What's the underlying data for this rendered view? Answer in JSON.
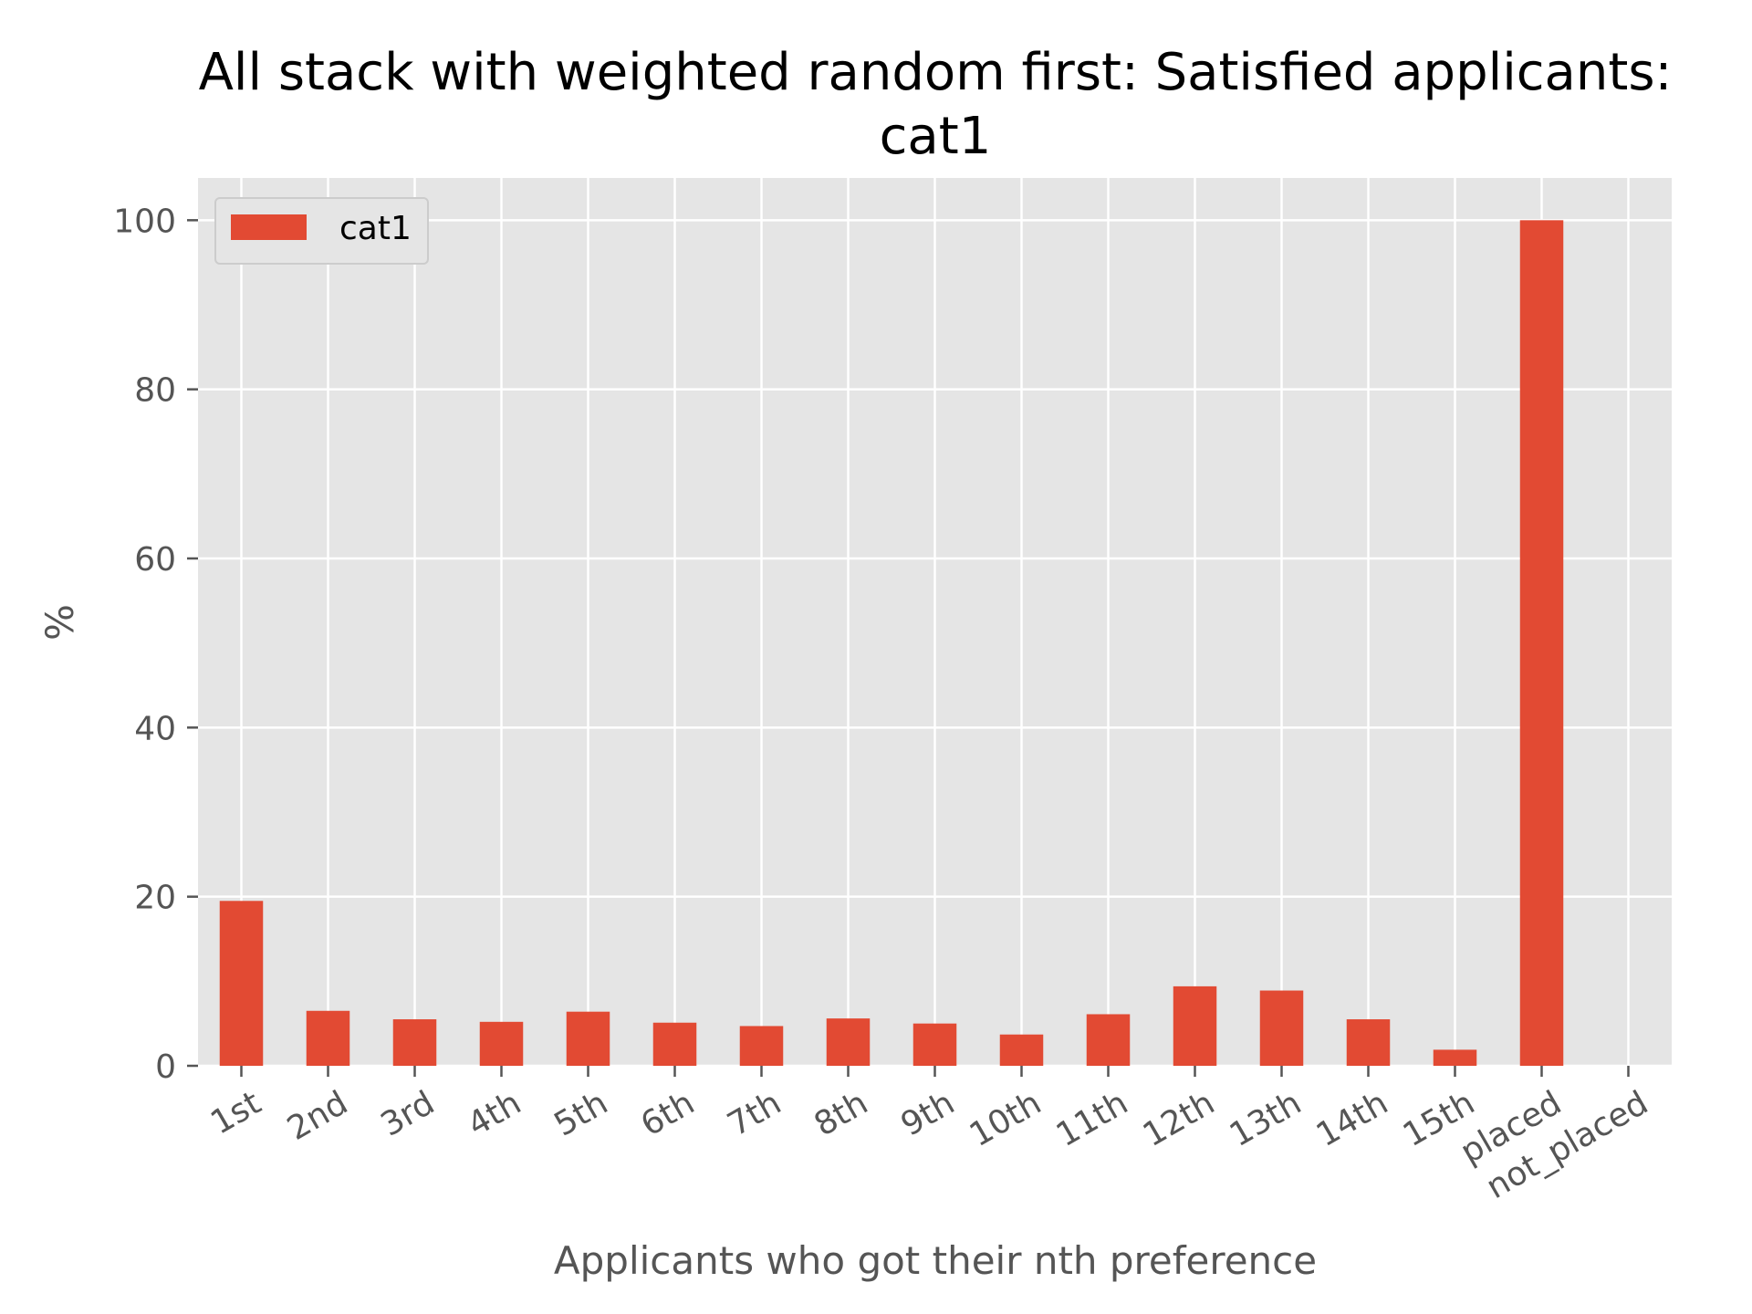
{
  "chart_data": {
    "type": "bar",
    "title_line1": "All stack with weighted random first: Satisfied applicants:",
    "title_line2": "cat1",
    "xlabel": "Applicants who got their nth preference",
    "ylabel": "%",
    "categories": [
      "1st",
      "2nd",
      "3rd",
      "4th",
      "5th",
      "6th",
      "7th",
      "8th",
      "9th",
      "10th",
      "11th",
      "12th",
      "13th",
      "14th",
      "15th",
      "placed",
      "not_placed"
    ],
    "series": [
      {
        "name": "cat1",
        "values": [
          19.5,
          6.5,
          5.5,
          5.2,
          6.4,
          5.1,
          4.7,
          5.6,
          5.0,
          3.7,
          6.1,
          9.4,
          8.9,
          5.5,
          1.9,
          100.0,
          0.0
        ]
      }
    ],
    "ylim": [
      0,
      105
    ],
    "yticks": [
      0,
      20,
      40,
      60,
      80,
      100
    ],
    "grid": true,
    "legend_position": "top-left",
    "colors": {
      "bar": "#E24A33",
      "plot_background": "#E5E5E5",
      "grid": "#FFFFFF",
      "tick_text": "#555555"
    }
  }
}
